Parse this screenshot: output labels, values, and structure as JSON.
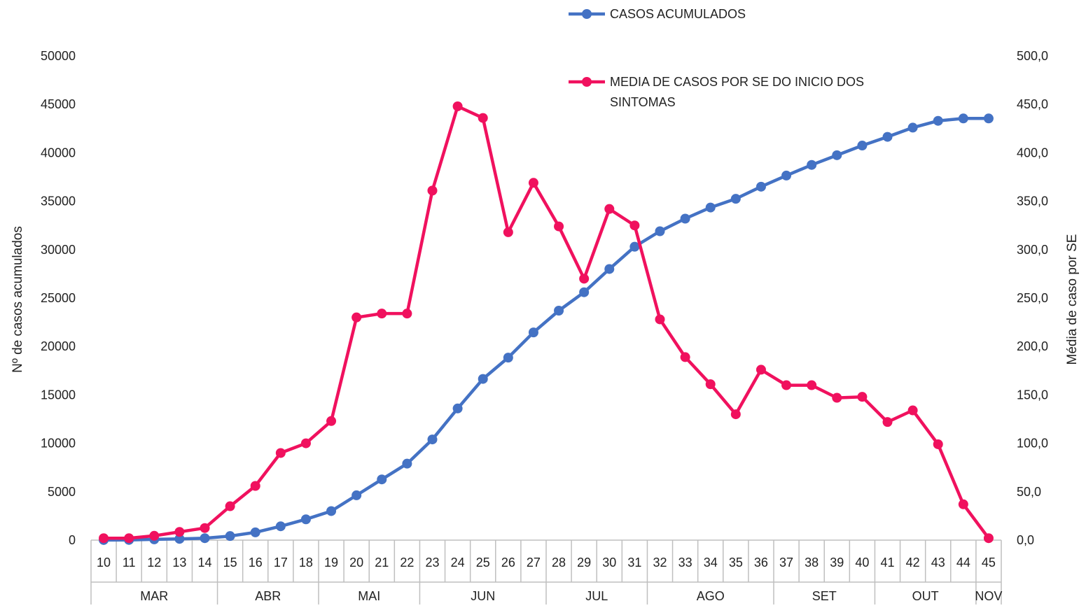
{
  "chart_data": {
    "type": "line",
    "title": "",
    "x": [
      "10",
      "11",
      "12",
      "13",
      "14",
      "15",
      "16",
      "17",
      "18",
      "19",
      "20",
      "21",
      "22",
      "23",
      "24",
      "25",
      "26",
      "27",
      "28",
      "29",
      "30",
      "31",
      "32",
      "33",
      "34",
      "35",
      "36",
      "37",
      "38",
      "39",
      "40",
      "41",
      "42",
      "43",
      "44",
      "45"
    ],
    "month_groups": [
      {
        "label": "MAR",
        "count": 5
      },
      {
        "label": "ABR",
        "count": 4
      },
      {
        "label": "MAI",
        "count": 4
      },
      {
        "label": "JUN",
        "count": 5
      },
      {
        "label": "JUL",
        "count": 4
      },
      {
        "label": "AGO",
        "count": 5
      },
      {
        "label": "SET",
        "count": 4
      },
      {
        "label": "OUT",
        "count": 4
      },
      {
        "label": "NOV",
        "count": 1
      }
    ],
    "ylabel_left": "Nº de casos acumulados",
    "ylabel_right": "Média de caso por SE",
    "y_left_ticks": [
      "0",
      "5000",
      "10000",
      "15000",
      "20000",
      "25000",
      "30000",
      "35000",
      "40000",
      "45000",
      "50000"
    ],
    "y_right_ticks": [
      "0,0",
      "50,0",
      "100,0",
      "150,0",
      "200,0",
      "250,0",
      "300,0",
      "350,0",
      "400,0",
      "450,0",
      "500,0"
    ],
    "ylim_left": [
      0,
      50000
    ],
    "ylim_right": [
      0,
      500
    ],
    "grid": false,
    "legend_position": "top-right",
    "series": [
      {
        "name": "CASOS ACUMULADOS",
        "axis": "left",
        "color": "#4472C4",
        "values": [
          10,
          20,
          80,
          130,
          200,
          420,
          800,
          1430,
          2150,
          3000,
          4630,
          6270,
          7900,
          10400,
          13600,
          16650,
          18850,
          21450,
          23700,
          25600,
          28000,
          30300,
          31900,
          33200,
          34350,
          35250,
          36500,
          37650,
          38750,
          39750,
          40750,
          41650,
          42600,
          43300,
          43550,
          43550
        ]
      },
      {
        "name": "MEDIA DE CASOS POR SE DO INICIO DOS SINTOMAS",
        "legend_lines": [
          "MEDIA DE CASOS POR SE DO INICIO DOS",
          "SINTOMAS"
        ],
        "axis": "right",
        "color": "#F0115E",
        "values": [
          2,
          2,
          4.5,
          8.5,
          12.5,
          35,
          56,
          90,
          100,
          123,
          230,
          234,
          234,
          361,
          448,
          436,
          318,
          369,
          324,
          270,
          342,
          325,
          228,
          189,
          161,
          130,
          176,
          160,
          160,
          147,
          148,
          122,
          134,
          99,
          37,
          2
        ]
      }
    ]
  }
}
